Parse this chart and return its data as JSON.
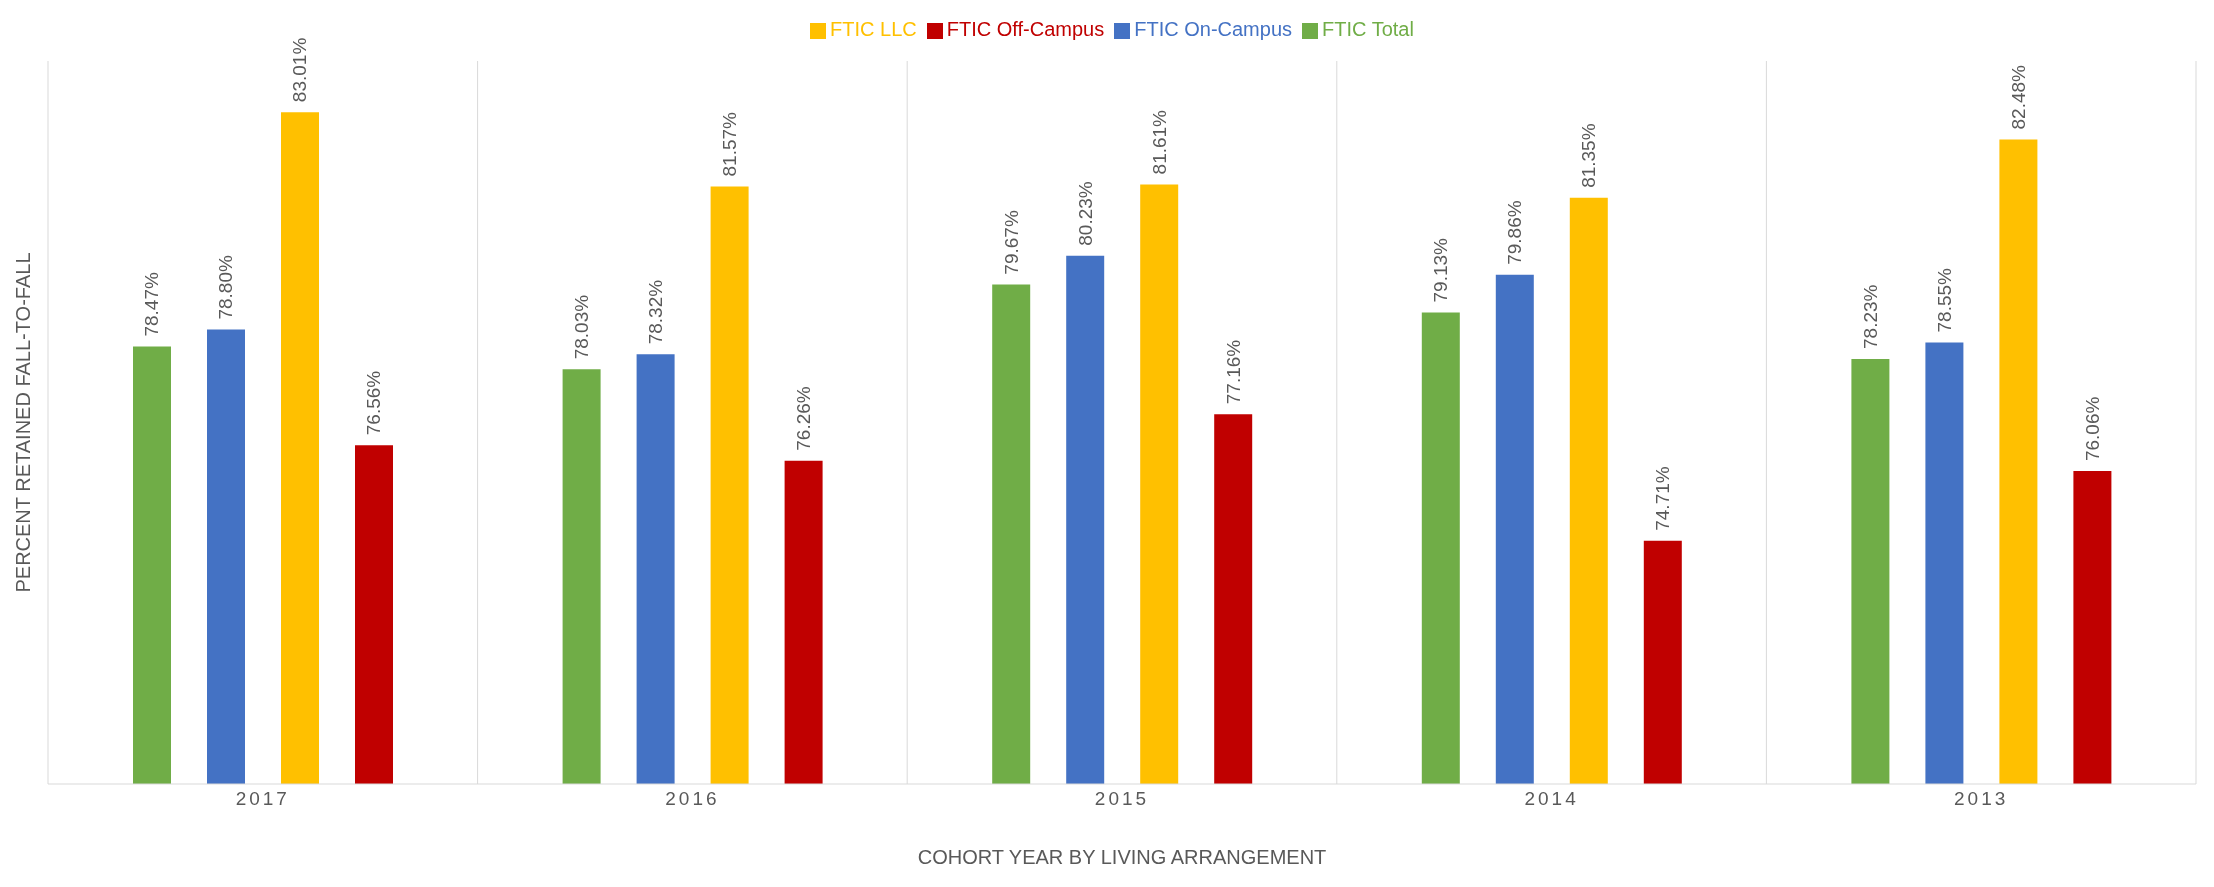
{
  "chart_data": {
    "type": "bar",
    "xlabel": "COHORT YEAR BY LIVING ARRANGEMENT",
    "ylabel": "PERCENT RETAINED FALL-TO-FALL",
    "categories": [
      "2017",
      "2016",
      "2015",
      "2014",
      "2013"
    ],
    "series": [
      {
        "name": "FTIC Total",
        "color": "#70ad47",
        "values": [
          78.47,
          78.03,
          79.67,
          79.13,
          78.23
        ],
        "value_labels": [
          "78.47%",
          "78.03%",
          "79.67%",
          "79.13%",
          "78.23%"
        ]
      },
      {
        "name": "FTIC On-Campus",
        "color": "#4472c4",
        "values": [
          78.8,
          78.32,
          80.23,
          79.86,
          78.55
        ],
        "value_labels": [
          "78.80%",
          "78.32%",
          "80.23%",
          "79.86%",
          "78.55%"
        ]
      },
      {
        "name": "FTIC LLC",
        "color": "#ffc000",
        "values": [
          83.01,
          81.57,
          81.61,
          81.35,
          82.48
        ],
        "value_labels": [
          "83.01%",
          "81.57%",
          "81.61%",
          "81.35%",
          "82.48%"
        ]
      },
      {
        "name": "FTIC Off-Campus",
        "color": "#c00000",
        "values": [
          76.56,
          76.26,
          77.16,
          74.71,
          76.06
        ],
        "value_labels": [
          "76.56%",
          "76.26%",
          "77.16%",
          "74.71%",
          "76.06%"
        ]
      }
    ],
    "ylim": [
      70,
      84
    ],
    "tick_labels": "x",
    "grid": "x",
    "legend": "top"
  }
}
